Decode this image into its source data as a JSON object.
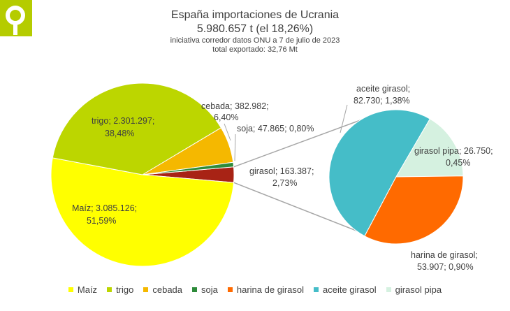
{
  "colors": {
    "maiz": "#ffff00",
    "trigo": "#bcd600",
    "cebada": "#f5b800",
    "soja": "#2e8b3a",
    "harina_de_girasol": "#ff6a00",
    "aceite_girasol": "#45bdc8",
    "girasol_pipa": "#d5f1e0",
    "girasol": "#a82315",
    "brand": "#b5cc00"
  },
  "icons": {
    "logo": "logo-icon"
  },
  "chart_data": {
    "type": "pie",
    "title": "España importaciones de Ucrania",
    "subtitle": "5.980.657 t (el 18,26%)",
    "note1": "iniciativa corredor datos ONU a 7 de julio de 2023",
    "note2": "total exportado: 32,76 Mt",
    "main_slices": [
      {
        "key": "maiz",
        "label1": "Maíz; 3.085.126;",
        "label2": "51,59%",
        "value": 3085126,
        "percent": 51.59
      },
      {
        "key": "trigo",
        "label1": "trigo; 2.301.297;",
        "label2": "38,48%",
        "value": 2301297,
        "percent": 38.48
      },
      {
        "key": "cebada",
        "label1": "cebada; 382.982;",
        "label2": "6,40%",
        "value": 382982,
        "percent": 6.4
      },
      {
        "key": "soja",
        "label1": "soja; 47.865; 0,80%",
        "label2": "",
        "value": 47865,
        "percent": 0.8
      },
      {
        "key": "girasol",
        "label1": "girasol; 163.387;",
        "label2": "2,73%",
        "value": 163387,
        "percent": 2.73
      }
    ],
    "secondary_slices": [
      {
        "key": "aceite_girasol",
        "label1": "aceite girasol;",
        "label2": "82.730; 1,38%",
        "value": 82730,
        "percent": 1.38
      },
      {
        "key": "girasol_pipa",
        "label1": "girasol pipa; 26.750;",
        "label2": "0,45%",
        "value": 26750,
        "percent": 0.45
      },
      {
        "key": "harina_de_girasol",
        "label1": "harina de girasol;",
        "label2": "53.907; 0,90%",
        "value": 53907,
        "percent": 0.9
      }
    ],
    "legend": [
      {
        "key": "maiz",
        "label": "Maíz"
      },
      {
        "key": "trigo",
        "label": "trigo"
      },
      {
        "key": "cebada",
        "label": "cebada"
      },
      {
        "key": "soja",
        "label": "soja"
      },
      {
        "key": "harina_de_girasol",
        "label": "harina de girasol"
      },
      {
        "key": "aceite_girasol",
        "label": "aceite girasol"
      },
      {
        "key": "girasol_pipa",
        "label": "girasol pipa"
      }
    ]
  }
}
